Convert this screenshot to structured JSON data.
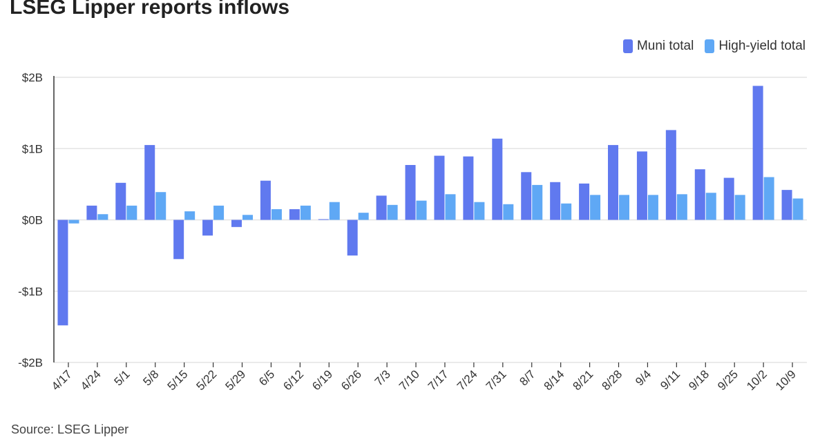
{
  "title": "LSEG Lipper reports inflows",
  "source": "Source: LSEG Lipper",
  "colors": {
    "muni": "#6079ef",
    "hy": "#5fa8f5",
    "grid": "#e4e4e4",
    "axis": "#333333"
  },
  "chart_data": {
    "type": "bar",
    "title": "LSEG Lipper reports inflows",
    "xlabel": "",
    "ylabel": "",
    "ylim": [
      -2,
      2
    ],
    "yticks": [
      2,
      1,
      0,
      -1,
      -2
    ],
    "ytick_labels": [
      "$2B",
      "$1B",
      "$0B",
      "-$1B",
      "-$2B"
    ],
    "grid": true,
    "legend_position": "top-right",
    "categories": [
      "4/17",
      "4/24",
      "5/1",
      "5/8",
      "5/15",
      "5/22",
      "5/29",
      "6/5",
      "6/12",
      "6/19",
      "6/26",
      "7/3",
      "7/10",
      "7/17",
      "7/24",
      "7/31",
      "8/7",
      "8/14",
      "8/21",
      "8/28",
      "9/4",
      "9/11",
      "9/18",
      "9/25",
      "10/2",
      "10/9"
    ],
    "series": [
      {
        "name": "Muni total",
        "color": "#6079ef",
        "values": [
          -1.48,
          0.2,
          0.52,
          1.05,
          -0.55,
          -0.22,
          -0.1,
          0.55,
          0.15,
          0.01,
          -0.5,
          0.34,
          0.77,
          0.9,
          0.89,
          1.14,
          0.67,
          0.53,
          0.51,
          1.05,
          0.96,
          1.26,
          0.71,
          0.59,
          1.88,
          0.42
        ]
      },
      {
        "name": "High-yield total",
        "color": "#5fa8f5",
        "values": [
          -0.05,
          0.08,
          0.2,
          0.39,
          0.12,
          0.2,
          0.07,
          0.15,
          0.2,
          0.25,
          0.1,
          0.21,
          0.27,
          0.36,
          0.25,
          0.22,
          0.49,
          0.23,
          0.35,
          0.35,
          0.35,
          0.36,
          0.38,
          0.35,
          0.6,
          0.3
        ]
      }
    ]
  }
}
